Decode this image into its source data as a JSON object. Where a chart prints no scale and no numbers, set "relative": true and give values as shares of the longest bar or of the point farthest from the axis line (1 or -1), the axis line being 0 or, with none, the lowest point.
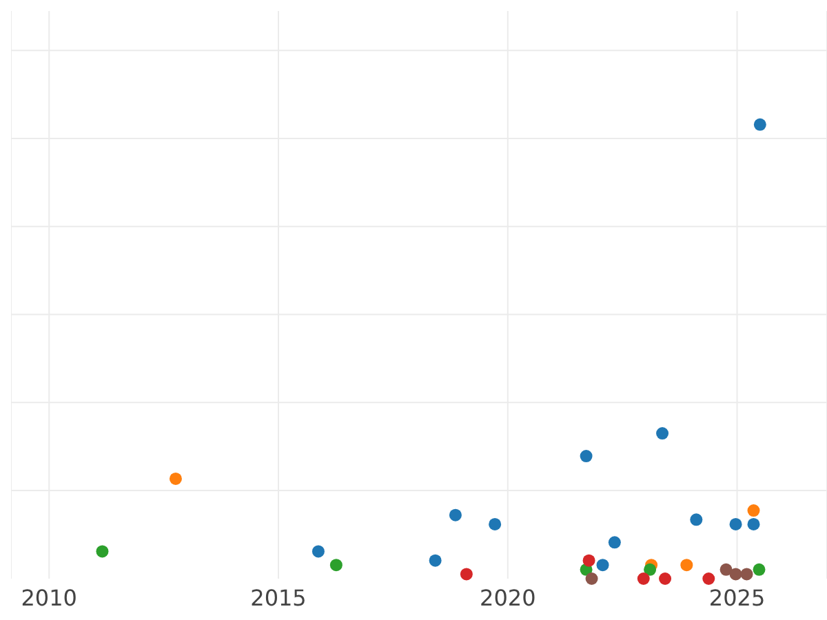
{
  "chart_data": {
    "type": "scatter",
    "relative": true,
    "grid": true,
    "marker": "circle",
    "xlim": [
      2009.17,
      2026.96
    ],
    "xticks": [
      2010,
      2015,
      2020,
      2025
    ],
    "series": [
      {
        "color": "#1f77b4",
        "x": [
          2025.5,
          2023.37,
          2021.71,
          2018.86,
          2019.72,
          2024.11,
          2024.97,
          2025.36,
          2022.33,
          2015.87,
          2018.42,
          2022.07
        ],
        "values": [
          1.0,
          0.32,
          0.27,
          0.14,
          0.12,
          0.13,
          0.12,
          0.12,
          0.08,
          0.06,
          0.04,
          0.03
        ]
      },
      {
        "color": "#ff7f0e",
        "x": [
          2012.76,
          2025.36,
          2023.13,
          2023.9
        ],
        "values": [
          0.22,
          0.15,
          0.03,
          0.03
        ]
      },
      {
        "color": "#2ca02c",
        "x": [
          2011.16,
          2016.26,
          2021.71,
          2023.1,
          2025.48
        ],
        "values": [
          0.06,
          0.03,
          0.02,
          0.02,
          0.02
        ]
      },
      {
        "color": "#d62728",
        "x": [
          2019.1,
          2021.77,
          2022.96,
          2023.43,
          2024.38
        ],
        "values": [
          0.01,
          0.04,
          0,
          0,
          0
        ]
      },
      {
        "color": "#8c564b",
        "x": [
          2021.83,
          2024.76,
          2024.97,
          2025.21
        ],
        "values": [
          0,
          0.02,
          0.01,
          0.01
        ]
      }
    ]
  }
}
